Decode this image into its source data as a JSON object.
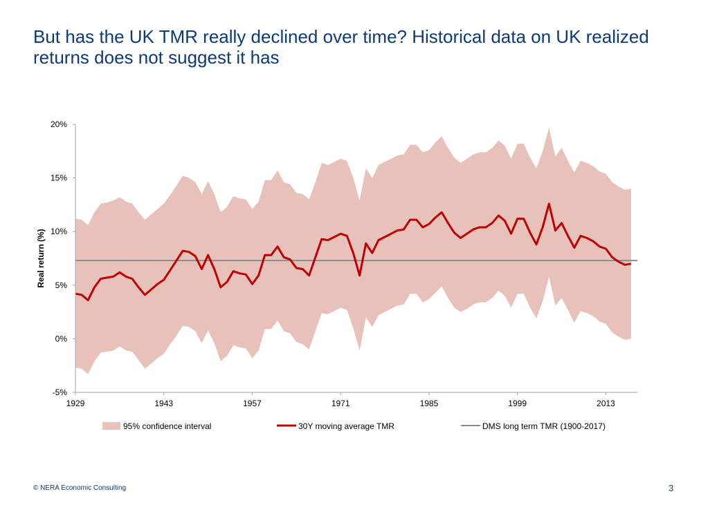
{
  "slide": {
    "title": "But has the UK TMR really declined over time?  Historical data on UK realized returns does not suggest it has",
    "footer": "© NERA Economic Consulting",
    "page_number": "3"
  },
  "colors": {
    "title": "#0d3a78",
    "band": "#e8c1bb",
    "line": "#c00000",
    "reference": "#8c8c8c",
    "axis": "#a6a6a6"
  },
  "chart_data": {
    "type": "line",
    "title": "",
    "xlabel": "",
    "ylabel": "Real return (%)",
    "ylim": [
      -5,
      20
    ],
    "yticks": [
      -5,
      0,
      5,
      10,
      15,
      20
    ],
    "ytick_labels": [
      "-5%",
      "0%",
      "5%",
      "10%",
      "15%",
      "20%"
    ],
    "xlim": [
      1929,
      2018
    ],
    "xticks": [
      1929,
      1943,
      1957,
      1971,
      1985,
      1999,
      2013
    ],
    "xtick_labels": [
      "1929",
      "1943",
      "1957",
      "1971",
      "1985",
      "1999",
      "2013"
    ],
    "grid": false,
    "legend_position": "bottom",
    "x": [
      1929,
      1930,
      1931,
      1932,
      1933,
      1934,
      1935,
      1936,
      1937,
      1938,
      1939,
      1940,
      1941,
      1942,
      1943,
      1944,
      1945,
      1946,
      1947,
      1948,
      1949,
      1950,
      1951,
      1952,
      1953,
      1954,
      1955,
      1956,
      1957,
      1958,
      1959,
      1960,
      1961,
      1962,
      1963,
      1964,
      1965,
      1966,
      1967,
      1968,
      1969,
      1970,
      1971,
      1972,
      1973,
      1974,
      1975,
      1976,
      1977,
      1978,
      1979,
      1980,
      1981,
      1982,
      1983,
      1984,
      1985,
      1986,
      1987,
      1988,
      1989,
      1990,
      1991,
      1992,
      1993,
      1994,
      1995,
      1996,
      1997,
      1998,
      1999,
      2000,
      2001,
      2002,
      2003,
      2004,
      2005,
      2006,
      2007,
      2008,
      2009,
      2010,
      2011,
      2012,
      2013,
      2014,
      2015,
      2016,
      2017
    ],
    "series": [
      {
        "name": "95% confidence interval",
        "kind": "band",
        "upper": [
          11.2,
          11.1,
          10.6,
          11.8,
          12.6,
          12.7,
          12.9,
          13.2,
          12.8,
          12.6,
          11.8,
          11.1,
          11.6,
          12.1,
          12.6,
          13.4,
          14.3,
          15.2,
          15.0,
          14.6,
          13.5,
          14.7,
          13.5,
          11.8,
          12.3,
          13.3,
          13.1,
          13.0,
          12.1,
          12.8,
          14.8,
          14.8,
          15.7,
          14.6,
          14.4,
          13.6,
          13.5,
          13.0,
          14.6,
          16.4,
          16.2,
          16.5,
          16.8,
          16.6,
          15.0,
          12.9,
          15.9,
          15.0,
          16.2,
          16.5,
          16.8,
          17.1,
          17.2,
          18.1,
          18.1,
          17.4,
          17.6,
          18.3,
          18.9,
          17.8,
          16.9,
          16.4,
          16.8,
          17.2,
          17.4,
          17.4,
          17.8,
          18.5,
          18.0,
          16.8,
          18.2,
          18.2,
          16.9,
          15.9,
          17.5,
          19.7,
          17.0,
          17.8,
          16.6,
          15.5,
          16.6,
          16.4,
          16.1,
          15.6,
          15.4,
          14.6,
          14.2,
          13.9,
          14.0
        ],
        "lower": [
          -2.7,
          -2.8,
          -3.3,
          -2.1,
          -1.3,
          -1.2,
          -1.1,
          -0.7,
          -1.1,
          -1.2,
          -2.0,
          -2.8,
          -2.3,
          -1.8,
          -1.4,
          -0.5,
          0.3,
          1.2,
          1.1,
          0.7,
          -0.4,
          0.8,
          -0.4,
          -2.1,
          -1.6,
          -0.6,
          -0.8,
          -0.9,
          -1.8,
          -1.1,
          0.9,
          0.9,
          1.7,
          0.7,
          0.5,
          -0.3,
          -0.5,
          -1.0,
          0.7,
          2.4,
          2.3,
          2.6,
          2.9,
          2.7,
          1.0,
          -1.1,
          2.0,
          1.1,
          2.2,
          2.5,
          2.8,
          3.1,
          3.2,
          4.2,
          4.2,
          3.4,
          3.7,
          4.3,
          4.9,
          3.8,
          2.9,
          2.5,
          2.8,
          3.2,
          3.4,
          3.4,
          3.8,
          4.5,
          4.0,
          2.9,
          4.2,
          4.2,
          2.9,
          1.9,
          3.5,
          5.8,
          3.1,
          3.8,
          2.7,
          1.5,
          2.6,
          2.4,
          2.1,
          1.6,
          1.4,
          0.6,
          0.2,
          -0.1,
          0.0
        ]
      },
      {
        "name": "30Y moving average TMR",
        "kind": "line",
        "values": [
          4.2,
          4.1,
          3.6,
          4.8,
          5.6,
          5.7,
          5.8,
          6.2,
          5.8,
          5.6,
          4.8,
          4.1,
          4.6,
          5.1,
          5.5,
          6.4,
          7.3,
          8.2,
          8.1,
          7.7,
          6.5,
          7.8,
          6.5,
          4.8,
          5.3,
          6.3,
          6.1,
          6.0,
          5.1,
          5.9,
          7.8,
          7.8,
          8.6,
          7.6,
          7.4,
          6.6,
          6.5,
          5.9,
          7.6,
          9.3,
          9.2,
          9.5,
          9.8,
          9.6,
          8.0,
          5.9,
          8.9,
          8.0,
          9.2,
          9.5,
          9.8,
          10.1,
          10.2,
          11.1,
          11.1,
          10.4,
          10.7,
          11.3,
          11.8,
          10.8,
          9.9,
          9.4,
          9.8,
          10.2,
          10.4,
          10.4,
          10.8,
          11.5,
          11.0,
          9.8,
          11.2,
          11.2,
          9.9,
          8.8,
          10.4,
          12.6,
          10.1,
          10.8,
          9.6,
          8.5,
          9.6,
          9.4,
          9.1,
          8.6,
          8.4,
          7.6,
          7.2,
          6.9,
          7.0
        ]
      },
      {
        "name": "DMS long term TMR (1900-2017)",
        "kind": "reference",
        "value": 7.3
      }
    ]
  }
}
